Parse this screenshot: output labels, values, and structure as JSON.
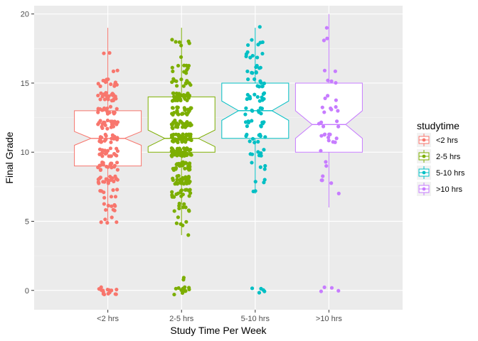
{
  "chart_data": {
    "type": "box",
    "xlabel": "Study Time Per Week",
    "ylabel": "Final Grade",
    "ylim": [
      -1.4,
      20.6
    ],
    "yticks": [
      0,
      5,
      10,
      15,
      20
    ],
    "categories": [
      "<2 hrs",
      "2-5 hrs",
      "5-10 hrs",
      ">10 hrs"
    ],
    "legend": {
      "title": "studytime",
      "position": "right"
    },
    "colors": [
      "#F8766D",
      "#7CAE00",
      "#00BFC4",
      "#C77CFF"
    ],
    "panel_background": "#EBEBEB",
    "grid": true,
    "jitter_points": true,
    "series": [
      {
        "name": "<2 hrs",
        "q1": 9,
        "median": 11,
        "q3": 13,
        "whisker_low": 5,
        "whisker_high": 19,
        "notch_low": 10.5,
        "notch_high": 11.5,
        "outliers": [
          0,
          0,
          0,
          0,
          0,
          0,
          0,
          0,
          0,
          0,
          0,
          0,
          0,
          0,
          0,
          0
        ],
        "n": 195
      },
      {
        "name": "2-5 hrs",
        "q1": 10,
        "median": 11,
        "q3": 14,
        "whisker_low": 4,
        "whisker_high": 19,
        "notch_low": 10.4,
        "notch_high": 11.6,
        "outliers": [
          0,
          0,
          0,
          0,
          0,
          0,
          0,
          0,
          0,
          0,
          0,
          0,
          1,
          1
        ],
        "n": 315
      },
      {
        "name": "5-10 hrs",
        "q1": 11,
        "median": 13,
        "q3": 15,
        "whisker_low": 7,
        "whisker_high": 19,
        "notch_low": 12.3,
        "notch_high": 13.7,
        "outliers": [
          0,
          0,
          0,
          0,
          0
        ],
        "n": 97
      },
      {
        "name": ">10 hrs",
        "q1": 10,
        "median": 12,
        "q3": 15,
        "whisker_low": 6,
        "whisker_high": 20,
        "notch_low": 11.0,
        "notch_high": 13.0,
        "outliers": [
          0,
          0,
          0,
          0
        ],
        "n": 44
      }
    ]
  }
}
